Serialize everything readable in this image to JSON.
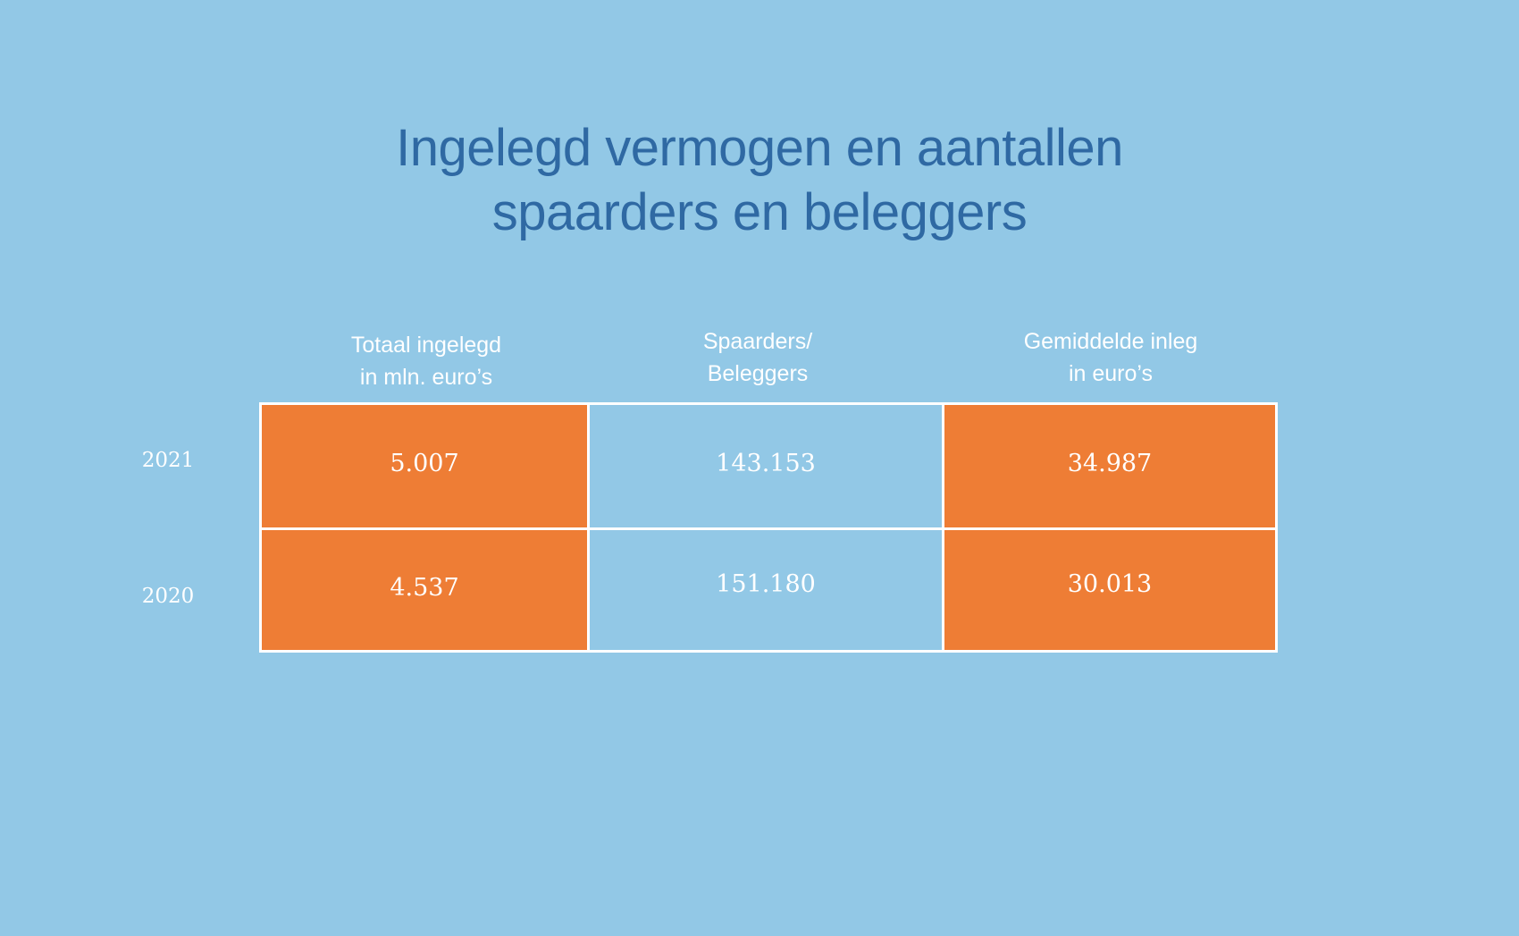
{
  "title": {
    "line1": "Ingelegd vermogen en aantallen",
    "line2": "spaarders en beleggers"
  },
  "colors": {
    "background": "#92c8e6",
    "title": "#2f69a3",
    "highlight": "#ee7d35",
    "text": "#ffffff",
    "grid": "#ffffff"
  },
  "chart_data": {
    "type": "table",
    "title": "Ingelegd vermogen en aantallen spaarders en beleggers",
    "columns": [
      {
        "line1": "Totaal ingelegd",
        "line2": "in mln. euro’s"
      },
      {
        "line1": "Spaarders/",
        "line2": "Beleggers"
      },
      {
        "line1": "Gemiddelde inleg",
        "line2": "in euro’s"
      }
    ],
    "rows": [
      {
        "label": "2021",
        "values": [
          "5.007",
          "143.153",
          "34.987"
        ]
      },
      {
        "label": "2020",
        "values": [
          "4.537",
          "151.180",
          "30.013"
        ]
      }
    ],
    "highlighted_columns": [
      0,
      2
    ]
  }
}
